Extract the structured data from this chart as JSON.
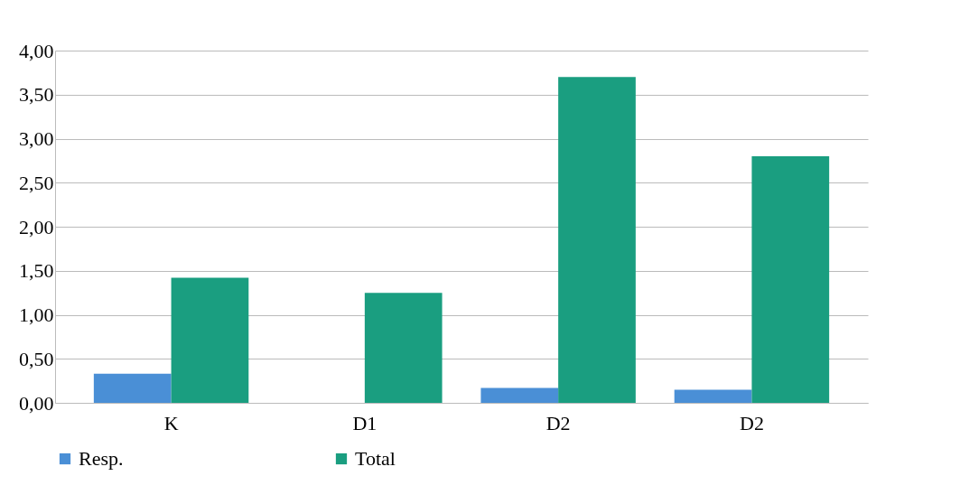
{
  "chart_data": {
    "type": "bar",
    "categories": [
      "K",
      "D1",
      "D2",
      "D2"
    ],
    "series": [
      {
        "name": "Resp.",
        "color": "#4a8fd6",
        "values": [
          0.33,
          0,
          0.17,
          0.15
        ]
      },
      {
        "name": "Total",
        "color": "#1a9e80",
        "values": [
          1.42,
          1.25,
          3.7,
          2.8
        ]
      }
    ],
    "ylim": [
      0,
      4
    ],
    "yticks": [
      {
        "value": 0,
        "label": "0,00"
      },
      {
        "value": 0.5,
        "label": "0,50"
      },
      {
        "value": 1,
        "label": "1,00"
      },
      {
        "value": 1.5,
        "label": "1,50"
      },
      {
        "value": 2,
        "label": "2,00"
      },
      {
        "value": 2.5,
        "label": "2,50"
      },
      {
        "value": 3,
        "label": "3,00"
      },
      {
        "value": 3.5,
        "label": "3,50"
      },
      {
        "value": 4,
        "label": "4,00"
      }
    ],
    "grid": "y",
    "legend": "bottom"
  }
}
